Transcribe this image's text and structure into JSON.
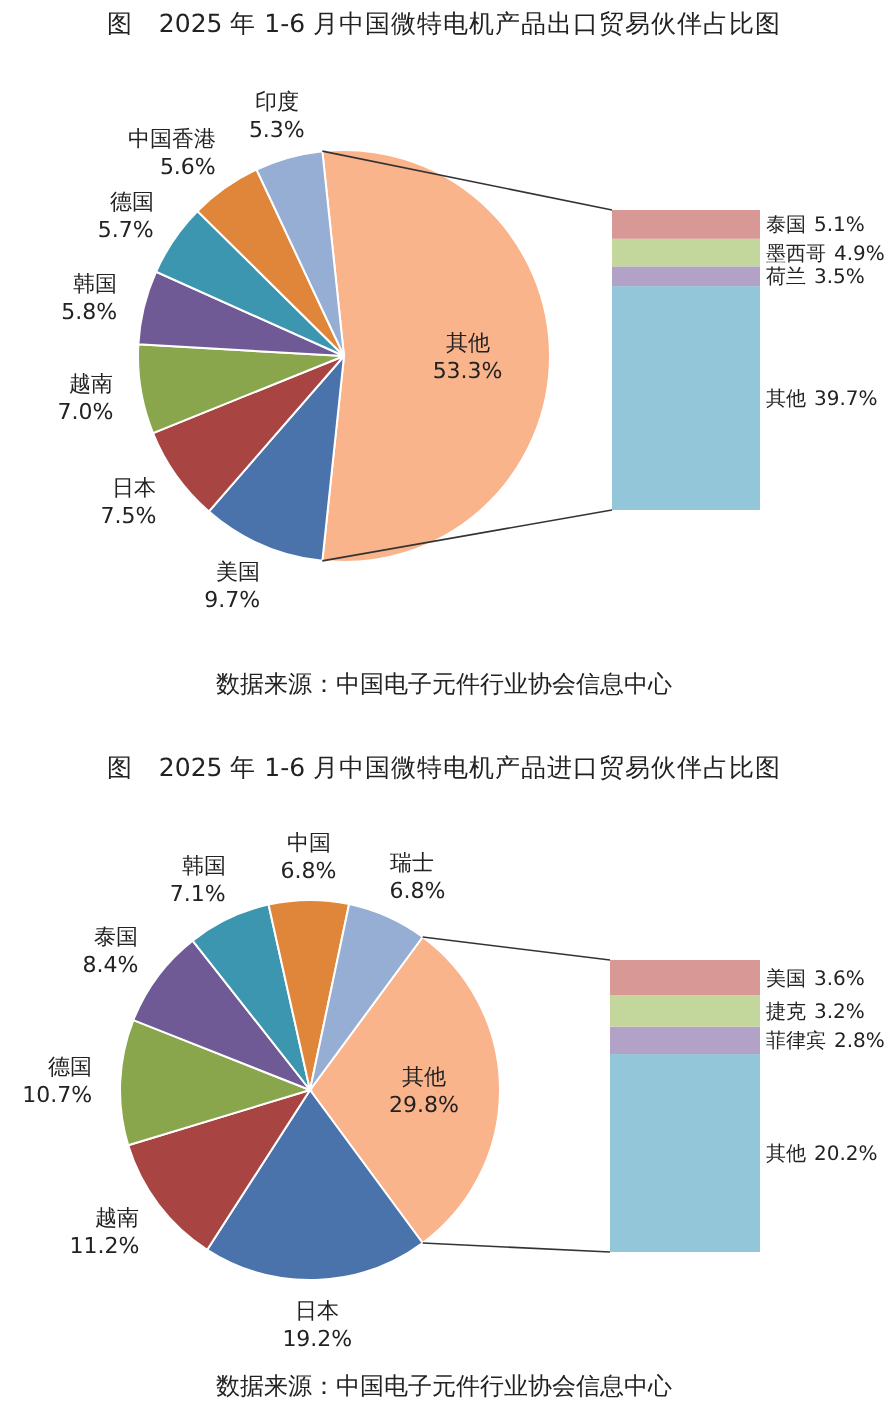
{
  "chart_data": [
    {
      "type": "pie",
      "title": "图　2025 年 1-6 月中国微特电机产品出口贸易伙伴占比图",
      "annotations": [
        "数据来源：中国电子元件行业协会信息中心"
      ],
      "categories": [
        "其他",
        "美国",
        "日本",
        "越南",
        "韩国",
        "德国",
        "中国香港",
        "印度"
      ],
      "values": [
        53.3,
        9.7,
        7.5,
        7.0,
        5.8,
        5.7,
        5.6,
        5.3
      ],
      "value_labels": [
        "53.3%",
        "9.7%",
        "7.5%",
        "7.0%",
        "5.8%",
        "5.7%",
        "5.6%",
        "5.3%"
      ],
      "colors": [
        "#f9b48c",
        "#4a72ab",
        "#a84442",
        "#8aa64c",
        "#6f5a96",
        "#3c96b0",
        "#e0863a",
        "#96aed3"
      ]
    },
    {
      "type": "other",
      "categories": [
        "其他",
        "荷兰",
        "墨西哥",
        "泰国"
      ],
      "values": [
        39.7,
        3.5,
        4.9,
        5.1
      ],
      "value_labels": [
        "39.7%",
        "3.5%",
        "4.9%",
        "5.1%"
      ],
      "colors": [
        "#93c6d8",
        "#b3a2c7",
        "#c3d69b",
        "#d79896"
      ]
    },
    {
      "type": "pie",
      "title": "图　2025 年 1-6 月中国微特电机产品进口贸易伙伴占比图",
      "annotations": [
        "数据来源：中国电子元件行业协会信息中心"
      ],
      "categories": [
        "其他",
        "日本",
        "越南",
        "德国",
        "泰国",
        "韩国",
        "中国",
        "瑞士"
      ],
      "values": [
        29.8,
        19.2,
        11.2,
        10.7,
        8.4,
        7.1,
        6.8,
        6.8
      ],
      "value_labels": [
        "29.8%",
        "19.2%",
        "11.2%",
        "10.7%",
        "8.4%",
        "7.1%",
        "6.8%",
        "6.8%"
      ],
      "colors": [
        "#f9b48c",
        "#4a72ab",
        "#a84442",
        "#8aa64c",
        "#6f5a96",
        "#3c96b0",
        "#e0863a",
        "#96aed3"
      ]
    },
    {
      "type": "other",
      "categories": [
        "其他",
        "菲律宾",
        "捷克",
        "美国"
      ],
      "values": [
        20.2,
        2.8,
        3.2,
        3.6
      ],
      "value_labels": [
        "20.2%",
        "2.8%",
        "3.2%",
        "3.6%"
      ],
      "colors": [
        "#93c6d8",
        "#b3a2c7",
        "#c3d69b",
        "#d79896"
      ]
    }
  ]
}
